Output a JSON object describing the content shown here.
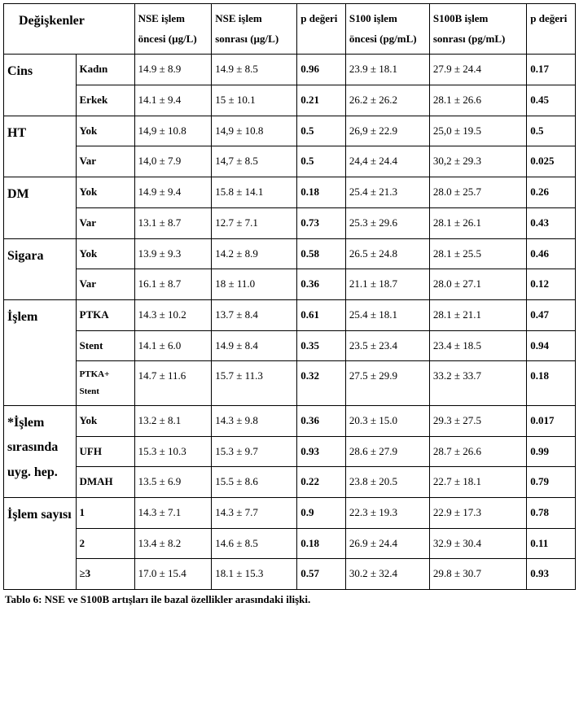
{
  "caption": "Tablo 6: NSE ve S100B artışları ile bazal özellikler arasındaki ilişki.",
  "headers": {
    "var": "Değişkenler",
    "nse_pre": "NSE işlem öncesi (µg/L)",
    "nse_post": "NSE işlem sonrası (µg/L)",
    "p1": "p değeri",
    "s100_pre": "S100 işlem öncesi (pg/mL)",
    "s100_post": "S100B işlem sonrası (pg/mL)",
    "p2": "p değeri"
  },
  "groups": [
    {
      "label": "Cins",
      "rows": [
        {
          "sub": "Kadın",
          "nse_pre": "14.9 ± 8.9",
          "nse_post": "14.9 ± 8.5",
          "p1": "0.96",
          "s_pre": "23.9 ± 18.1",
          "s_post": "27.9 ± 24.4",
          "p2": "0.17"
        },
        {
          "sub": "Erkek",
          "nse_pre": "14.1 ± 9.4",
          "nse_post": "15 ± 10.1",
          "p1": "0.21",
          "s_pre": "26.2 ± 26.2",
          "s_post": "28.1 ± 26.6",
          "p2": "0.45"
        }
      ]
    },
    {
      "label": "HT",
      "rows": [
        {
          "sub": "Yok",
          "nse_pre": "14,9 ± 10.8",
          "nse_post": "14,9 ± 10.8",
          "p1": "0.5",
          "s_pre": "26,9 ± 22.9",
          "s_post": "25,0 ± 19.5",
          "p2": "0.5"
        },
        {
          "sub": "Var",
          "nse_pre": "14,0 ± 7.9",
          "nse_post": "14,7 ± 8.5",
          "p1": "0.5",
          "s_pre": "24,4 ±  24.4",
          "s_post": "30,2 ± 29.3",
          "p2": "0.025"
        }
      ]
    },
    {
      "label": "DM",
      "rows": [
        {
          "sub": "Yok",
          "nse_pre": "14.9 ± 9.4",
          "nse_post": "15.8 ± 14.1",
          "p1": "0.18",
          "s_pre": "25.4 ± 21.3",
          "s_post": "28.0 ± 25.7",
          "p2": "0.26"
        },
        {
          "sub": "Var",
          "nse_pre": "13.1 ± 8.7",
          "nse_post": "12.7 ± 7.1",
          "p1": "0.73",
          "s_pre": "25.3 ± 29.6",
          "s_post": "28.1 ± 26.1",
          "p2": "0.43"
        }
      ]
    },
    {
      "label": "Sigara",
      "rows": [
        {
          "sub": "Yok",
          "nse_pre": "13.9 ± 9.3",
          "nse_post": "14.2 ± 8.9",
          "p1": "0.58",
          "s_pre": "26.5 ± 24.8",
          "s_post": "28.1 ± 25.5",
          "p2": "0.46"
        },
        {
          "sub": "Var",
          "nse_pre": "16.1 ± 8.7",
          "nse_post": "18 ± 11.0",
          "p1": "0.36",
          "s_pre": "21.1 ± 18.7",
          "s_post": "28.0 ± 27.1",
          "p2": "0.12"
        }
      ]
    },
    {
      "label": "İşlem",
      "rows": [
        {
          "sub": "PTKA",
          "nse_pre": "14.3 ± 10.2",
          "nse_post": "13.7 ± 8.4",
          "p1": "0.61",
          "s_pre": "25.4 ± 18.1",
          "s_post": "28.1 ± 21.1",
          "p2": "0.47"
        },
        {
          "sub": "Stent",
          "nse_pre": "14.1 ± 6.0",
          "nse_post": "14.9 ± 8.4",
          "p1": "0.35",
          "s_pre": "23.5 ± 23.4",
          "s_post": "23.4 ± 18.5",
          "p2": "0.94"
        },
        {
          "sub": "PTKA+ Stent",
          "nse_pre": "14.7 ± 11.6",
          "nse_post": "15.7 ± 11.3",
          "p1": "0.32",
          "s_pre": "27.5 ± 29.9",
          "s_post": "33.2 ± 33.7",
          "p2": "0.18",
          "subclass": "ptka-stent"
        }
      ]
    },
    {
      "label": "*İşlem sırasında uyg. hep.",
      "rows": [
        {
          "sub": "Yok",
          "nse_pre": "13.2 ± 8.1",
          "nse_post": "14.3 ± 9.8",
          "p1": "0.36",
          "s_pre": "20.3 ± 15.0",
          "s_post": "29.3 ± 27.5",
          "p2": "0.017"
        },
        {
          "sub": "UFH",
          "nse_pre": "15.3 ± 10.3",
          "nse_post": "15.3 ± 9.7",
          "p1": "0.93",
          "s_pre": "28.6 ± 27.9",
          "s_post": "28.7 ± 26.6",
          "p2": "0.99"
        },
        {
          "sub": "DMAH",
          "nse_pre": "13.5 ± 6.9",
          "nse_post": "15.5 ± 8.6",
          "p1": "0.22",
          "s_pre": "23.8 ± 20.5",
          "s_post": "22.7 ± 18.1",
          "p2": "0.79"
        }
      ]
    },
    {
      "label": "İşlem sayısı",
      "rows": [
        {
          "sub": "1",
          "nse_pre": "14.3  ± 7.1",
          "nse_post": "14.3  ± 7.7",
          "p1": "0.9",
          "s_pre": "22.3  ± 19.3",
          "s_post": "22.9  ± 17.3",
          "p2": "0.78"
        },
        {
          "sub": "2",
          "nse_pre": "13.4 ± 8.2",
          "nse_post": "14.6  ± 8.5",
          "p1": "0.18",
          "s_pre": "26.9  ± 24.4",
          "s_post": "32.9  ± 30.4",
          "p2": "0.11"
        },
        {
          "sub": "≥3",
          "nse_pre": "17.0  ± 15.4",
          "nse_post": "18.1 ± 15.3",
          "p1": "0.57",
          "s_pre": "30.2  ± 32.4",
          "s_post": "29.8  ± 30.7",
          "p2": "0.93"
        }
      ]
    }
  ]
}
